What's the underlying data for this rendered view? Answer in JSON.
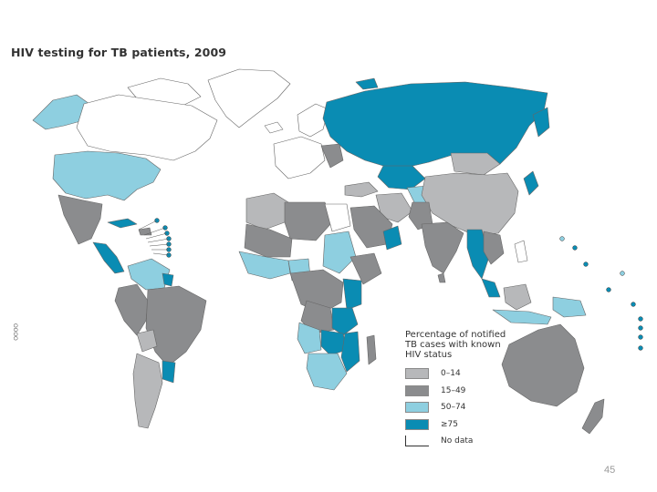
{
  "title": "HIV testing for TB patients, 2009",
  "legend": {
    "title": "Percentage of notified TB cases with known HIV status",
    "items": [
      {
        "label": "0–14",
        "color": "#b7b8ba"
      },
      {
        "label": "15–49",
        "color": "#8b8c8e"
      },
      {
        "label": "50–74",
        "color": "#8ecfe0"
      },
      {
        "label": "≥75",
        "color": "#0a8cb3"
      },
      {
        "label": "No data",
        "color": "#ffffff"
      }
    ]
  },
  "page_number": "45",
  "side_mark": "OOOO"
}
